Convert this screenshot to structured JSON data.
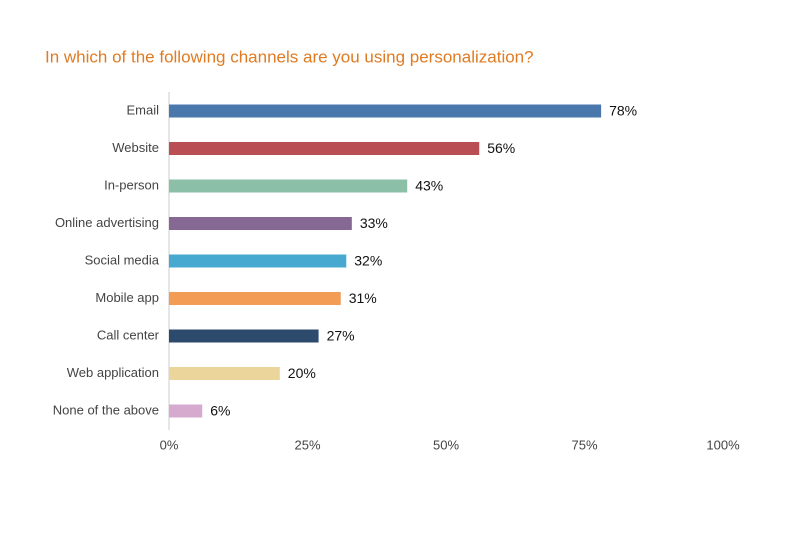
{
  "chart_data": {
    "type": "bar",
    "orientation": "horizontal",
    "title": "In which of the following channels are you using personalization?",
    "categories": [
      "Email",
      "Website",
      "In-person",
      "Online advertising",
      "Social media",
      "Mobile app",
      "Call center",
      "Web application",
      "None of the above"
    ],
    "values": [
      78,
      56,
      43,
      33,
      32,
      31,
      27,
      20,
      6
    ],
    "value_labels": [
      "78%",
      "56%",
      "43%",
      "33%",
      "32%",
      "31%",
      "27%",
      "20%",
      "6%"
    ],
    "colors": [
      "#4a78ad",
      "#b94f55",
      "#8bbfa8",
      "#856894",
      "#48a9d0",
      "#f39c55",
      "#2c4a6b",
      "#ecd59b",
      "#d6a9cf"
    ],
    "xlim": [
      0,
      100
    ],
    "xticks": [
      {
        "value": 0,
        "label": "0%"
      },
      {
        "value": 25,
        "label": "25%"
      },
      {
        "value": 50,
        "label": "50%"
      },
      {
        "value": 75,
        "label": "75%"
      },
      {
        "value": 100,
        "label": "100%"
      }
    ],
    "grid": false
  }
}
